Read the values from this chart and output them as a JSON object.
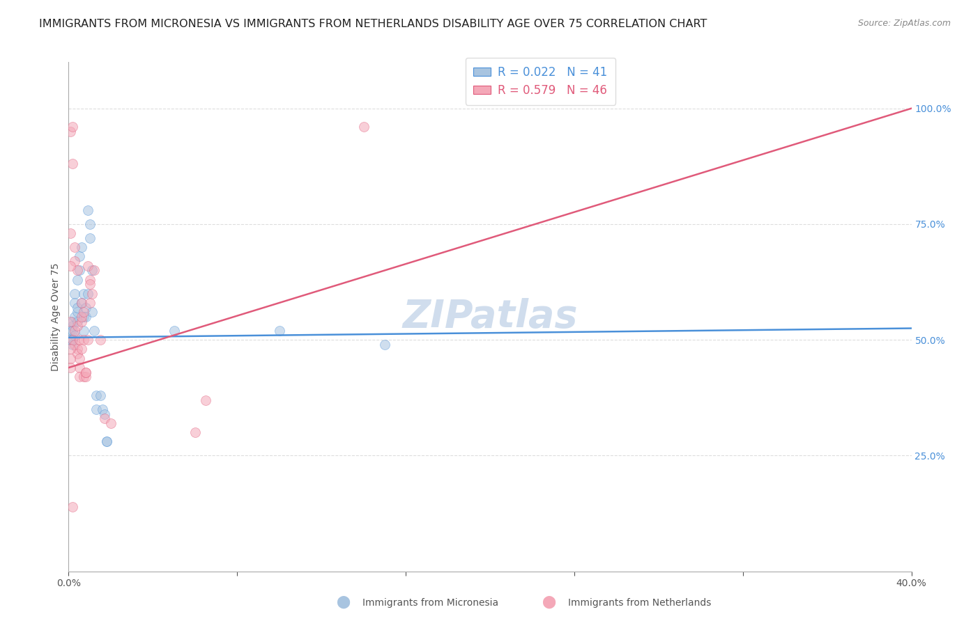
{
  "title": "IMMIGRANTS FROM MICRONESIA VS IMMIGRANTS FROM NETHERLANDS DISABILITY AGE OVER 75 CORRELATION CHART",
  "source": "Source: ZipAtlas.com",
  "ylabel": "Disability Age Over 75",
  "ylabel_right_labels": [
    "100.0%",
    "75.0%",
    "50.0%",
    "25.0%"
  ],
  "ylabel_right_values": [
    1.0,
    0.75,
    0.5,
    0.25
  ],
  "xmin": 0.0,
  "xmax": 0.4,
  "ymin": 0.0,
  "ymax": 1.1,
  "legend_blue_r": "0.022",
  "legend_blue_n": "41",
  "legend_pink_r": "0.579",
  "legend_pink_n": "46",
  "blue_label": "Immigrants from Micronesia",
  "pink_label": "Immigrants from Netherlands",
  "watermark": "ZIPatlas",
  "blue_color": "#a8c4e0",
  "pink_color": "#f4a8b8",
  "blue_line_color": "#4a90d9",
  "pink_line_color": "#e05a7a",
  "blue_scatter": [
    [
      0.001,
      0.52
    ],
    [
      0.002,
      0.53
    ],
    [
      0.002,
      0.54
    ],
    [
      0.002,
      0.5
    ],
    [
      0.002,
      0.52
    ],
    [
      0.002,
      0.49
    ],
    [
      0.003,
      0.6
    ],
    [
      0.003,
      0.51
    ],
    [
      0.003,
      0.55
    ],
    [
      0.003,
      0.58
    ],
    [
      0.004,
      0.63
    ],
    [
      0.004,
      0.56
    ],
    [
      0.004,
      0.57
    ],
    [
      0.004,
      0.54
    ],
    [
      0.005,
      0.65
    ],
    [
      0.005,
      0.68
    ],
    [
      0.006,
      0.7
    ],
    [
      0.006,
      0.58
    ],
    [
      0.007,
      0.52
    ],
    [
      0.007,
      0.55
    ],
    [
      0.007,
      0.6
    ],
    [
      0.008,
      0.57
    ],
    [
      0.008,
      0.55
    ],
    [
      0.009,
      0.78
    ],
    [
      0.009,
      0.6
    ],
    [
      0.01,
      0.75
    ],
    [
      0.01,
      0.72
    ],
    [
      0.011,
      0.65
    ],
    [
      0.011,
      0.56
    ],
    [
      0.012,
      0.52
    ],
    [
      0.013,
      0.38
    ],
    [
      0.013,
      0.35
    ],
    [
      0.015,
      0.38
    ],
    [
      0.016,
      0.35
    ],
    [
      0.017,
      0.34
    ],
    [
      0.018,
      0.28
    ],
    [
      0.018,
      0.28
    ],
    [
      0.05,
      0.52
    ],
    [
      0.1,
      0.52
    ],
    [
      0.15,
      0.49
    ],
    [
      0.001,
      0.5
    ]
  ],
  "pink_scatter": [
    [
      0.001,
      0.95
    ],
    [
      0.002,
      0.96
    ],
    [
      0.002,
      0.88
    ],
    [
      0.002,
      0.5
    ],
    [
      0.003,
      0.52
    ],
    [
      0.003,
      0.49
    ],
    [
      0.003,
      0.7
    ],
    [
      0.003,
      0.67
    ],
    [
      0.004,
      0.65
    ],
    [
      0.004,
      0.48
    ],
    [
      0.004,
      0.53
    ],
    [
      0.004,
      0.47
    ],
    [
      0.005,
      0.5
    ],
    [
      0.005,
      0.46
    ],
    [
      0.005,
      0.44
    ],
    [
      0.005,
      0.42
    ],
    [
      0.006,
      0.58
    ],
    [
      0.006,
      0.54
    ],
    [
      0.006,
      0.55
    ],
    [
      0.006,
      0.48
    ],
    [
      0.007,
      0.5
    ],
    [
      0.007,
      0.56
    ],
    [
      0.007,
      0.42
    ],
    [
      0.008,
      0.42
    ],
    [
      0.008,
      0.43
    ],
    [
      0.008,
      0.43
    ],
    [
      0.009,
      0.5
    ],
    [
      0.009,
      0.66
    ],
    [
      0.01,
      0.63
    ],
    [
      0.01,
      0.62
    ],
    [
      0.01,
      0.58
    ],
    [
      0.011,
      0.6
    ],
    [
      0.012,
      0.65
    ],
    [
      0.015,
      0.5
    ],
    [
      0.017,
      0.33
    ],
    [
      0.02,
      0.32
    ],
    [
      0.06,
      0.3
    ],
    [
      0.14,
      0.96
    ],
    [
      0.002,
      0.14
    ],
    [
      0.001,
      0.48
    ],
    [
      0.001,
      0.46
    ],
    [
      0.001,
      0.44
    ],
    [
      0.001,
      0.54
    ],
    [
      0.065,
      0.37
    ],
    [
      0.001,
      0.73
    ],
    [
      0.001,
      0.66
    ]
  ],
  "blue_line_x": [
    0.0,
    0.4
  ],
  "blue_line_y": [
    0.505,
    0.525
  ],
  "pink_line_x": [
    0.0,
    0.4
  ],
  "pink_line_y": [
    0.44,
    1.0
  ],
  "grid_color": "#dddddd",
  "title_fontsize": 11.5,
  "axis_label_fontsize": 10,
  "tick_fontsize": 10,
  "legend_fontsize": 12,
  "watermark_fontsize": 40,
  "watermark_color": "#c8d8ea",
  "marker_size": 100,
  "marker_alpha": 0.55
}
